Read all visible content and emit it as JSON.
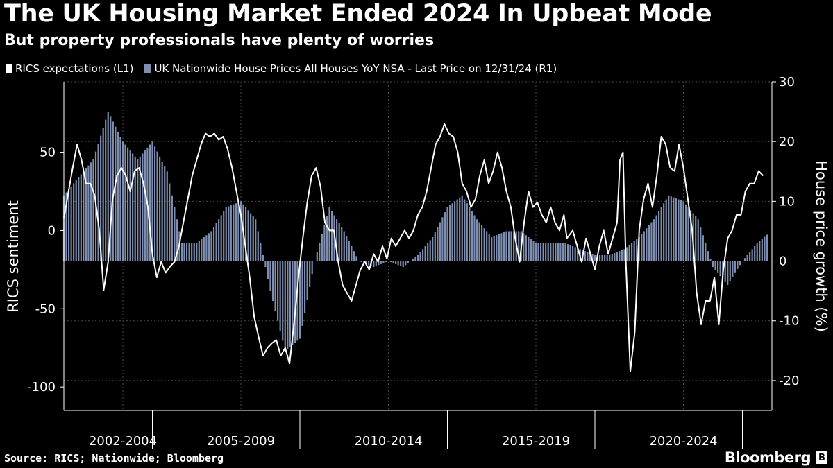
{
  "header": {
    "title": "The UK Housing Market Ended 2024 In Upbeat Mode",
    "subtitle": "But property professionals have plenty of worries"
  },
  "footer": {
    "source": "Source: RICS; Nationwide; Bloomberg",
    "brand": "Bloomberg",
    "logo_glyph": "B"
  },
  "colors": {
    "background": "#000000",
    "line": "#ffffff",
    "bars": "#7d8eb0",
    "grid": "#4a4a4a"
  },
  "chart_data": {
    "type": "bar+line",
    "title": "The UK Housing Market Ended 2024 In Upbeat Mode",
    "subtitle": "But property professionals have plenty of worries",
    "legend_position": "top-left",
    "legend": [
      "RICS expectations (L1)",
      "UK Nationwide House Prices All Houses YoY NSA - Last Price on 12/31/24 (R1)"
    ],
    "ylabel_left": "RICS sentiment",
    "ylabel_right": "House price growth (%)",
    "ylim_left": [
      -115,
      95
    ],
    "ylim_right": [
      -25,
      30
    ],
    "yticks_left": [
      50,
      0,
      -50,
      -100
    ],
    "yticks_right": [
      30,
      20,
      10,
      0,
      -10,
      -20
    ],
    "ytick_labels_left": [
      "50",
      "0",
      "-50",
      "-100"
    ],
    "ytick_labels_right": [
      "30",
      "20",
      "10",
      "0",
      "-10",
      "-20"
    ],
    "xlim": [
      2001.0,
      2025.0
    ],
    "x_groups": [
      {
        "label": "2002-2004",
        "center": 2003.0
      },
      {
        "label": "2005-2009",
        "center": 2007.0
      },
      {
        "label": "2010-2014",
        "center": 2012.0
      },
      {
        "label": "2015-2019",
        "center": 2017.0
      },
      {
        "label": "2020-2024",
        "center": 2022.0
      }
    ],
    "x_separators": [
      2004.0,
      2009.0,
      2014.0,
      2019.0,
      2024.0
    ],
    "series": [
      {
        "name": "RICS expectations (L1)",
        "type": "line",
        "axis": "left",
        "points": [
          [
            2001.0,
            8
          ],
          [
            2001.3,
            40
          ],
          [
            2001.45,
            55
          ],
          [
            2001.6,
            45
          ],
          [
            2001.75,
            30
          ],
          [
            2001.9,
            30
          ],
          [
            2002.05,
            22
          ],
          [
            2002.2,
            0
          ],
          [
            2002.35,
            -38
          ],
          [
            2002.5,
            -20
          ],
          [
            2002.65,
            20
          ],
          [
            2002.8,
            35
          ],
          [
            2002.95,
            40
          ],
          [
            2003.1,
            35
          ],
          [
            2003.25,
            25
          ],
          [
            2003.4,
            38
          ],
          [
            2003.55,
            40
          ],
          [
            2003.7,
            30
          ],
          [
            2003.85,
            15
          ],
          [
            2004.0,
            -15
          ],
          [
            2004.15,
            -30
          ],
          [
            2004.3,
            -20
          ],
          [
            2004.45,
            -27
          ],
          [
            2004.6,
            -23
          ],
          [
            2004.75,
            -20
          ],
          [
            2004.9,
            -10
          ],
          [
            2005.05,
            5
          ],
          [
            2005.2,
            20
          ],
          [
            2005.35,
            35
          ],
          [
            2005.5,
            45
          ],
          [
            2005.65,
            55
          ],
          [
            2005.8,
            62
          ],
          [
            2005.95,
            60
          ],
          [
            2006.1,
            62
          ],
          [
            2006.25,
            58
          ],
          [
            2006.4,
            60
          ],
          [
            2006.55,
            52
          ],
          [
            2006.7,
            40
          ],
          [
            2006.85,
            25
          ],
          [
            2007.0,
            10
          ],
          [
            2007.15,
            -10
          ],
          [
            2007.3,
            -30
          ],
          [
            2007.45,
            -55
          ],
          [
            2007.6,
            -68
          ],
          [
            2007.75,
            -80
          ],
          [
            2007.9,
            -75
          ],
          [
            2008.05,
            -72
          ],
          [
            2008.2,
            -70
          ],
          [
            2008.35,
            -80
          ],
          [
            2008.5,
            -75
          ],
          [
            2008.65,
            -85
          ],
          [
            2008.8,
            -60
          ],
          [
            2008.95,
            -30
          ],
          [
            2009.1,
            -5
          ],
          [
            2009.25,
            18
          ],
          [
            2009.4,
            35
          ],
          [
            2009.55,
            40
          ],
          [
            2009.7,
            28
          ],
          [
            2009.85,
            5
          ],
          [
            2010.0,
            0
          ],
          [
            2010.15,
            0
          ],
          [
            2010.3,
            -20
          ],
          [
            2010.45,
            -35
          ],
          [
            2010.6,
            -40
          ],
          [
            2010.75,
            -45
          ],
          [
            2010.9,
            -35
          ],
          [
            2011.05,
            -25
          ],
          [
            2011.2,
            -20
          ],
          [
            2011.35,
            -25
          ],
          [
            2011.5,
            -15
          ],
          [
            2011.65,
            -20
          ],
          [
            2011.8,
            -10
          ],
          [
            2011.95,
            -18
          ],
          [
            2012.1,
            -5
          ],
          [
            2012.25,
            -10
          ],
          [
            2012.4,
            -5
          ],
          [
            2012.55,
            0
          ],
          [
            2012.7,
            -5
          ],
          [
            2012.85,
            0
          ],
          [
            2013.0,
            10
          ],
          [
            2013.15,
            15
          ],
          [
            2013.3,
            25
          ],
          [
            2013.45,
            40
          ],
          [
            2013.6,
            55
          ],
          [
            2013.75,
            60
          ],
          [
            2013.9,
            68
          ],
          [
            2014.05,
            62
          ],
          [
            2014.2,
            60
          ],
          [
            2014.35,
            50
          ],
          [
            2014.5,
            30
          ],
          [
            2014.65,
            25
          ],
          [
            2014.8,
            15
          ],
          [
            2014.95,
            20
          ],
          [
            2015.1,
            35
          ],
          [
            2015.25,
            45
          ],
          [
            2015.4,
            30
          ],
          [
            2015.55,
            38
          ],
          [
            2015.7,
            50
          ],
          [
            2015.85,
            40
          ],
          [
            2016.0,
            25
          ],
          [
            2016.15,
            15
          ],
          [
            2016.3,
            -5
          ],
          [
            2016.45,
            -20
          ],
          [
            2016.6,
            5
          ],
          [
            2016.75,
            25
          ],
          [
            2016.9,
            15
          ],
          [
            2017.05,
            18
          ],
          [
            2017.2,
            10
          ],
          [
            2017.35,
            5
          ],
          [
            2017.5,
            15
          ],
          [
            2017.65,
            5
          ],
          [
            2017.8,
            0
          ],
          [
            2017.95,
            10
          ],
          [
            2018.05,
            -5
          ],
          [
            2018.25,
            0
          ],
          [
            2018.4,
            -10
          ],
          [
            2018.55,
            -20
          ],
          [
            2018.7,
            -5
          ],
          [
            2018.85,
            -15
          ],
          [
            2019.0,
            -25
          ],
          [
            2019.15,
            -10
          ],
          [
            2019.3,
            0
          ],
          [
            2019.45,
            -15
          ],
          [
            2019.6,
            -5
          ],
          [
            2019.75,
            5
          ],
          [
            2019.85,
            45
          ],
          [
            2019.95,
            50
          ],
          [
            2020.05,
            -20
          ],
          [
            2020.2,
            -90
          ],
          [
            2020.35,
            -65
          ],
          [
            2020.5,
            0
          ],
          [
            2020.65,
            20
          ],
          [
            2020.8,
            30
          ],
          [
            2020.95,
            15
          ],
          [
            2021.1,
            35
          ],
          [
            2021.25,
            60
          ],
          [
            2021.4,
            55
          ],
          [
            2021.55,
            40
          ],
          [
            2021.7,
            38
          ],
          [
            2021.85,
            55
          ],
          [
            2022.0,
            40
          ],
          [
            2022.15,
            20
          ],
          [
            2022.3,
            0
          ],
          [
            2022.45,
            -40
          ],
          [
            2022.6,
            -60
          ],
          [
            2022.75,
            -45
          ],
          [
            2022.9,
            -45
          ],
          [
            2023.05,
            -30
          ],
          [
            2023.2,
            -60
          ],
          [
            2023.35,
            -25
          ],
          [
            2023.5,
            -5
          ],
          [
            2023.65,
            0
          ],
          [
            2023.8,
            10
          ],
          [
            2023.95,
            10
          ],
          [
            2024.1,
            25
          ],
          [
            2024.25,
            30
          ],
          [
            2024.4,
            30
          ],
          [
            2024.55,
            38
          ],
          [
            2024.7,
            35
          ]
        ]
      },
      {
        "name": "UK Nationwide House Prices All Houses YoY NSA - Last Price on 12/31/24 (R1)",
        "type": "bar",
        "axis": "right",
        "points": [
          [
            2001.0,
            11
          ],
          [
            2001.5,
            14
          ],
          [
            2002.0,
            17
          ],
          [
            2002.5,
            25
          ],
          [
            2003.0,
            20
          ],
          [
            2003.5,
            17
          ],
          [
            2004.0,
            20
          ],
          [
            2004.5,
            15
          ],
          [
            2005.0,
            3
          ],
          [
            2005.5,
            3
          ],
          [
            2006.0,
            5
          ],
          [
            2006.5,
            9
          ],
          [
            2007.0,
            10
          ],
          [
            2007.5,
            7
          ],
          [
            2008.0,
            -5
          ],
          [
            2008.5,
            -15
          ],
          [
            2009.0,
            -13
          ],
          [
            2009.5,
            0
          ],
          [
            2010.0,
            9
          ],
          [
            2010.5,
            5
          ],
          [
            2011.0,
            0
          ],
          [
            2011.5,
            -1
          ],
          [
            2012.0,
            0
          ],
          [
            2012.5,
            -1
          ],
          [
            2013.0,
            1
          ],
          [
            2013.5,
            4
          ],
          [
            2014.0,
            9
          ],
          [
            2014.5,
            11
          ],
          [
            2015.0,
            7
          ],
          [
            2015.5,
            4
          ],
          [
            2016.0,
            5
          ],
          [
            2016.5,
            5
          ],
          [
            2017.0,
            3
          ],
          [
            2017.5,
            3
          ],
          [
            2018.0,
            3
          ],
          [
            2018.5,
            2
          ],
          [
            2019.0,
            1
          ],
          [
            2019.5,
            1
          ],
          [
            2020.0,
            2
          ],
          [
            2020.5,
            4
          ],
          [
            2021.0,
            7
          ],
          [
            2021.5,
            11
          ],
          [
            2022.0,
            10
          ],
          [
            2022.5,
            7
          ],
          [
            2023.0,
            -1
          ],
          [
            2023.5,
            -4
          ],
          [
            2024.0,
            0
          ],
          [
            2024.5,
            3
          ],
          [
            2024.9,
            4.7
          ]
        ]
      }
    ]
  }
}
